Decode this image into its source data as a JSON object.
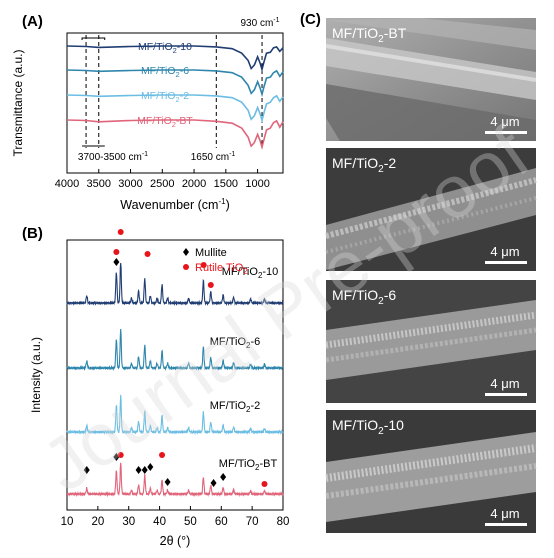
{
  "panels": {
    "a": {
      "letter": "(A)",
      "ylabel": "Transmittance (a.u.)",
      "xlabel": "Wavenumber (cm",
      "xlabel_sup": "-1",
      "xlabel_end": ")"
    },
    "b": {
      "letter": "(B)",
      "ylabel": "Intensity (a.u.)",
      "xlabel": "2θ (°)"
    },
    "c": {
      "letter": "(C)"
    }
  },
  "chart_data": [
    {
      "type": "line",
      "panel": "A",
      "xlabel": "Wavenumber (cm-1)",
      "ylabel": "Transmittance (a.u.)",
      "xlim": [
        4000,
        600
      ],
      "x_ticks": [
        4000,
        3500,
        3000,
        2500,
        2000,
        1500,
        1000
      ],
      "y_ticks_shown": false,
      "series": [
        {
          "name": "MF/TiO2-10",
          "color": "#1f3d73",
          "x": [
            4000,
            3700,
            3500,
            3000,
            2500,
            2000,
            1650,
            1400,
            1250,
            1150,
            1100,
            1050,
            1000,
            960,
            930,
            900,
            860,
            800,
            750,
            700,
            650,
            600
          ],
          "y": [
            0.0,
            -0.05,
            -0.15,
            -0.05,
            0.0,
            0.0,
            -0.1,
            -0.3,
            -0.8,
            -1.6,
            -2.5,
            -2.1,
            -1.2,
            -1.9,
            -2.6,
            -1.8,
            -0.8,
            -0.7,
            -0.2,
            -0.1,
            -0.6,
            -0.2
          ]
        },
        {
          "name": "MF/TiO2-6",
          "color": "#2f86ad",
          "x": [
            4000,
            3700,
            3500,
            3000,
            2500,
            2000,
            1650,
            1400,
            1250,
            1150,
            1100,
            1050,
            1000,
            960,
            930,
            900,
            860,
            800,
            750,
            700,
            650,
            600
          ],
          "y": [
            0.0,
            -0.05,
            -0.15,
            -0.05,
            0.0,
            0.0,
            -0.1,
            -0.3,
            -0.8,
            -1.7,
            -2.6,
            -2.2,
            -1.3,
            -2.0,
            -2.7,
            -1.9,
            -0.9,
            -0.8,
            -0.3,
            -0.1,
            -0.7,
            -0.2
          ]
        },
        {
          "name": "MF/TiO2-2",
          "color": "#6cbde3",
          "x": [
            4000,
            3700,
            3500,
            3000,
            2500,
            2000,
            1650,
            1400,
            1250,
            1150,
            1100,
            1050,
            1000,
            960,
            930,
            900,
            860,
            800,
            750,
            700,
            650,
            600
          ],
          "y": [
            0.0,
            -0.05,
            -0.15,
            -0.05,
            0.0,
            0.0,
            -0.1,
            -0.3,
            -0.8,
            -1.7,
            -2.7,
            -2.3,
            -1.4,
            -2.1,
            -2.8,
            -2.0,
            -1.0,
            -0.8,
            -0.3,
            -0.1,
            -0.7,
            -0.2
          ]
        },
        {
          "name": "MF/TiO2-BT",
          "color": "#e0647a",
          "x": [
            4000,
            3700,
            3500,
            3000,
            2500,
            2000,
            1650,
            1400,
            1250,
            1150,
            1100,
            1050,
            1000,
            960,
            930,
            900,
            860,
            800,
            750,
            700,
            650,
            600
          ],
          "y": [
            0.0,
            -0.05,
            -0.2,
            -0.05,
            0.0,
            0.0,
            -0.15,
            -0.35,
            -0.9,
            -1.9,
            -2.9,
            -2.5,
            -1.6,
            -2.3,
            -3.0,
            -2.2,
            -1.1,
            -0.9,
            -0.3,
            -0.1,
            -0.8,
            -0.2
          ]
        }
      ],
      "annotations": [
        {
          "text": "930 cm",
          "sup": "-1"
        },
        {
          "text": "1650 cm",
          "sup": "-1"
        },
        {
          "text": "3700-3500 cm",
          "sup": "-1"
        }
      ],
      "guide_lines_x": [
        3700,
        3500,
        1650,
        930
      ]
    },
    {
      "type": "line",
      "panel": "B",
      "xlabel": "2θ (°)",
      "ylabel": "Intensity (a.u.)",
      "xlim": [
        10,
        80
      ],
      "x_ticks": [
        10,
        20,
        30,
        40,
        50,
        60,
        70,
        80
      ],
      "y_ticks_shown": false,
      "legend": [
        {
          "marker": "diamond",
          "label": "Mullite",
          "color": "#000000"
        },
        {
          "marker": "circle",
          "label": "Rutile TiO2",
          "color": "#e8141b"
        }
      ],
      "peaks": [
        {
          "x": 16.4,
          "h": 0.18
        },
        {
          "x": 26.0,
          "h": 0.75
        },
        {
          "x": 27.4,
          "h": 1.0
        },
        {
          "x": 30.9,
          "h": 0.12
        },
        {
          "x": 33.2,
          "h": 0.3
        },
        {
          "x": 35.2,
          "h": 0.6
        },
        {
          "x": 37.0,
          "h": 0.18
        },
        {
          "x": 39.2,
          "h": 0.12
        },
        {
          "x": 40.8,
          "h": 0.45
        },
        {
          "x": 42.6,
          "h": 0.12
        },
        {
          "x": 49.4,
          "h": 0.12
        },
        {
          "x": 54.2,
          "h": 0.55
        },
        {
          "x": 56.6,
          "h": 0.28
        },
        {
          "x": 60.6,
          "h": 0.2
        },
        {
          "x": 64.0,
          "h": 0.14
        },
        {
          "x": 69.5,
          "h": 0.1
        },
        {
          "x": 74.0,
          "h": 0.1
        }
      ],
      "series": [
        {
          "name": "MF/TiO2-10",
          "color": "#1f3d73",
          "offset": 3,
          "scale": 0.8
        },
        {
          "name": "MF/TiO2-6",
          "color": "#2f86ad",
          "offset": 2,
          "scale": 0.75
        },
        {
          "name": "MF/TiO2-2",
          "color": "#6cbde3",
          "offset": 1,
          "scale": 0.7
        },
        {
          "name": "MF/TiO2-BT",
          "color": "#e0647a",
          "offset": 0,
          "scale": 0.6
        }
      ],
      "markers_top": [
        {
          "x": 26.0,
          "kind": "diamond"
        },
        {
          "x": 26.0,
          "kind": "circle"
        },
        {
          "x": 27.4,
          "kind": "circle"
        },
        {
          "x": 36.1,
          "kind": "circle"
        },
        {
          "x": 54.3,
          "kind": "circle"
        },
        {
          "x": 56.6,
          "kind": "circle"
        }
      ],
      "markers_bottom": [
        {
          "x": 16.4,
          "kind": "diamond"
        },
        {
          "x": 26.0,
          "kind": "diamond"
        },
        {
          "x": 27.4,
          "kind": "circle"
        },
        {
          "x": 33.2,
          "kind": "diamond"
        },
        {
          "x": 35.2,
          "kind": "diamond"
        },
        {
          "x": 37.0,
          "kind": "diamond"
        },
        {
          "x": 40.8,
          "kind": "circle"
        },
        {
          "x": 42.6,
          "kind": "diamond"
        },
        {
          "x": 57.5,
          "kind": "diamond"
        },
        {
          "x": 60.6,
          "kind": "diamond"
        },
        {
          "x": 74.0,
          "kind": "circle"
        }
      ]
    }
  ],
  "sem_images": [
    {
      "label": "MF/TiO",
      "sub": "2",
      "suffix": "-BT",
      "scale": "4 μm"
    },
    {
      "label": "MF/TiO",
      "sub": "2",
      "suffix": "-2",
      "scale": "4 μm"
    },
    {
      "label": "MF/TiO",
      "sub": "2",
      "suffix": "-6",
      "scale": "4 μm"
    },
    {
      "label": "MF/TiO",
      "sub": "2",
      "suffix": "-10",
      "scale": "4 μm"
    }
  ],
  "watermark": "Journal Pre-proof"
}
